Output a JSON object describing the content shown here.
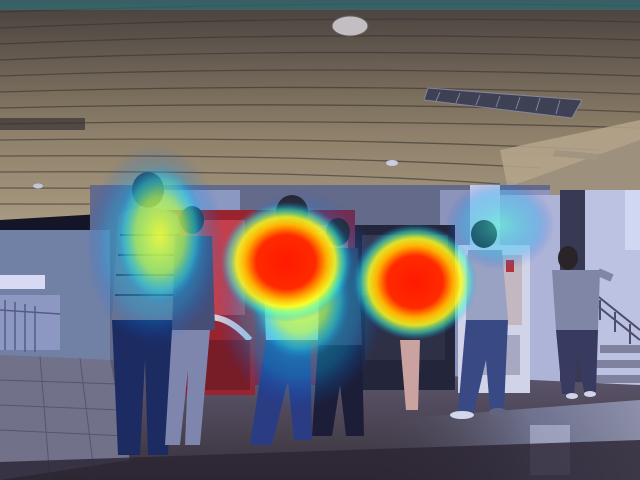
{
  "scene": {
    "kind": "photo-with-heatmap-overlay",
    "subjects": [
      "ceiling",
      "vending-machine-red",
      "vending-machine-dark",
      "vending-machine-white",
      "pedestrians",
      "staircase",
      "wet-floor"
    ],
    "heatmap_palette": [
      "#0050ff",
      "#00e0ff",
      "#ffff00",
      "#ff2a00"
    ],
    "ceiling_color": "#8a7a5a",
    "floor_color": "#5a4a3a"
  }
}
